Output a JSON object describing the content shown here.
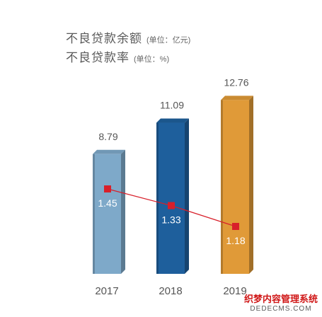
{
  "chart_data": {
    "type": "bar",
    "categories": [
      "2017",
      "2018",
      "2019"
    ],
    "series": [
      {
        "name": "不良贷款余额",
        "unit": "(单位：亿元)",
        "kind": "bar",
        "values": [
          8.79,
          11.09,
          12.76
        ]
      },
      {
        "name": "不良贷款率",
        "unit": "(单位：%)",
        "kind": "line",
        "values": [
          1.45,
          1.33,
          1.18
        ]
      }
    ],
    "bar_colors": [
      "#7ea9c9",
      "#1e5f9c",
      "#e09a38"
    ],
    "line_color": "#d81f2a",
    "grid": false,
    "legend_placement": "top-left"
  },
  "watermark": {
    "line1": "织梦内容管理系统",
    "line2": "DEDECMS.COM"
  }
}
